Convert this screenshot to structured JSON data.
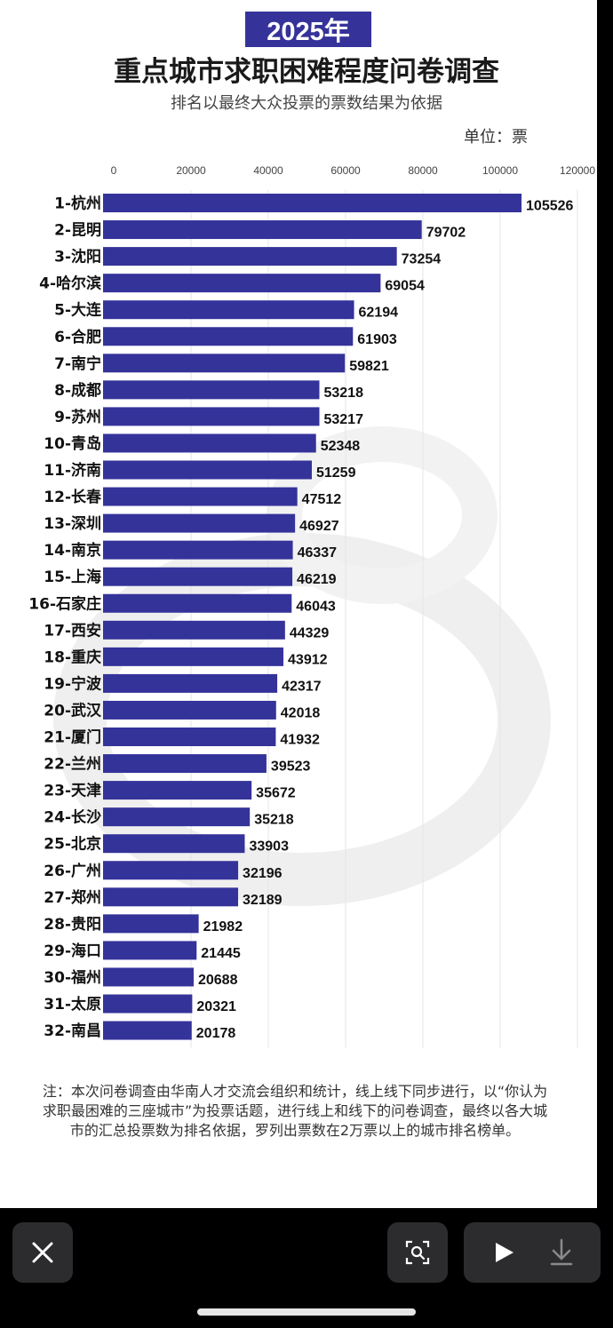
{
  "header": {
    "year_badge": "2025年",
    "title": "重点城市求职困难程度问卷调查",
    "subtitle": "排名以最终大众投票的票数结果为依据",
    "unit": "单位：票"
  },
  "chart_data": {
    "type": "bar",
    "orientation": "horizontal",
    "xlim": [
      0,
      120000
    ],
    "x_ticks": [
      "0",
      "20000",
      "40000",
      "60000",
      "80000",
      "100000",
      "120000"
    ],
    "categories": [
      "1-杭州",
      "2-昆明",
      "3-沈阳",
      "4-哈尔滨",
      "5-大连",
      "6-合肥",
      "7-南宁",
      "8-成都",
      "9-苏州",
      "10-青岛",
      "11-济南",
      "12-长春",
      "13-深圳",
      "14-南京",
      "15-上海",
      "16-石家庄",
      "17-西安",
      "18-重庆",
      "19-宁波",
      "20-武汉",
      "21-厦门",
      "22-兰州",
      "23-天津",
      "24-长沙",
      "25-北京",
      "26-广州",
      "27-郑州",
      "28-贵阳",
      "29-海口",
      "30-福州",
      "31-太原",
      "32-南昌"
    ],
    "values": [
      105526,
      79702,
      73254,
      69054,
      62194,
      61903,
      59821,
      53218,
      53217,
      52348,
      51259,
      47512,
      46927,
      46337,
      46219,
      46043,
      44329,
      43912,
      42317,
      42018,
      41932,
      39523,
      35672,
      35218,
      33903,
      32196,
      32189,
      21982,
      21445,
      20688,
      20321,
      20178
    ],
    "bar_color": "#34339a",
    "grid": true
  },
  "note": "注：本次问卷调查由华南人才交流会组织和统计，线上线下同步进行，以“你认为求职最困难的三座城市”为投票话题，进行线上和线下的问卷调查，最终以各大城市的汇总投票数为排名依据，罗列出票数在2万票以上的城市排名榜单。",
  "viewer_controls": {
    "close": "close-icon",
    "scan": "scan-icon",
    "play": "play-icon",
    "download": "download-icon"
  }
}
